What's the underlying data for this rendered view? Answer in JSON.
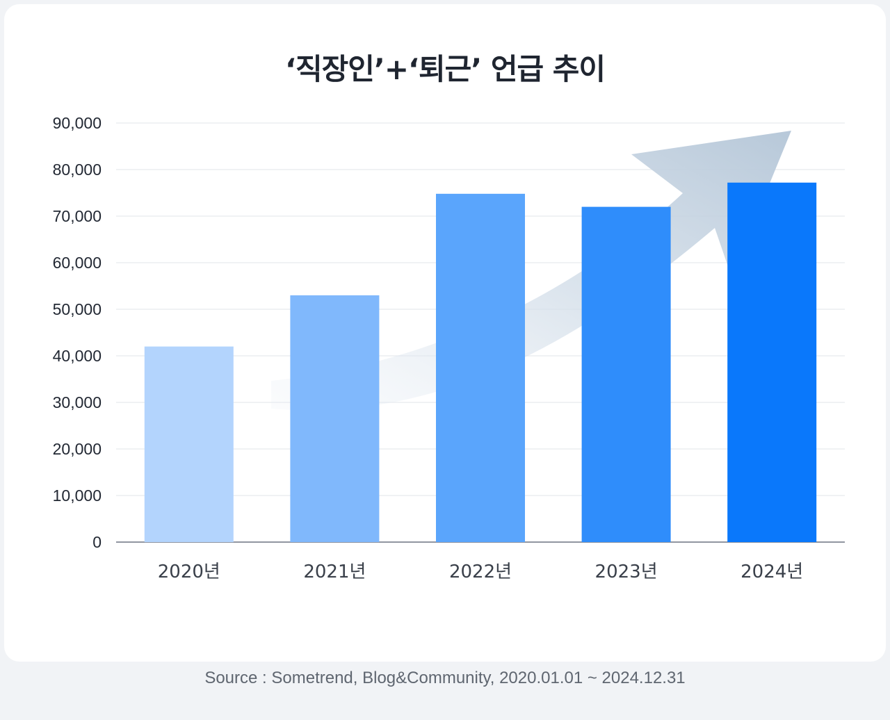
{
  "title": "‘직장인’+‘퇴근’ 언급 추이",
  "source": "Source : Sometrend, Blog&Community, 2020.01.01 ~ 2024.12.31",
  "chart_data": {
    "type": "bar",
    "title": "‘직장인’+‘퇴근’ 언급 추이",
    "categories": [
      "2020년",
      "2021년",
      "2022년",
      "2023년",
      "2024년"
    ],
    "values": [
      42000,
      53000,
      74800,
      72000,
      77200
    ],
    "ylim": [
      0,
      90000
    ],
    "yticks": [
      "0",
      "10,000",
      "20,000",
      "30,000",
      "40,000",
      "50,000",
      "60,000",
      "70,000",
      "80,000",
      "90,000"
    ],
    "xlabel": "",
    "ylabel": "",
    "grid": true,
    "legend": "none",
    "colors": [
      "#b3d4fd",
      "#80b8fc",
      "#5aa5fc",
      "#2f8dfb",
      "#0a78fb"
    ],
    "trend_arrow_color": "#c8d6e5"
  }
}
